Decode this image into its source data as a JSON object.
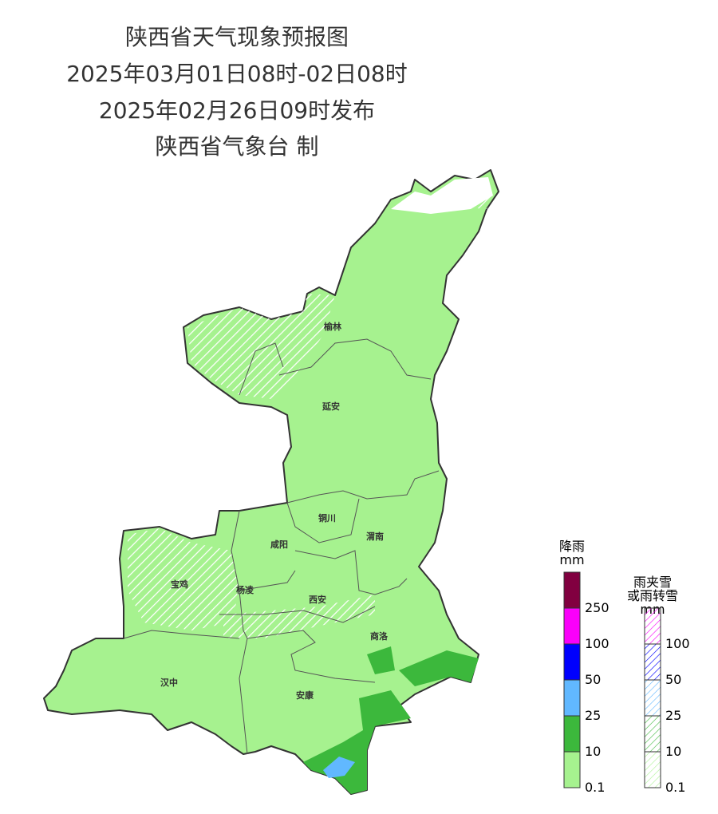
{
  "header": {
    "lines": [
      "陕西省天气现象预报图",
      "2025年03月01日08时-02日08时",
      "2025年02月26日09时发布",
      "陕西省气象台 制"
    ]
  },
  "cities": [
    {
      "label": "榆林"
    },
    {
      "label": "延安"
    },
    {
      "label": "铜川"
    },
    {
      "label": "渭南"
    },
    {
      "label": "咸阳"
    },
    {
      "label": "宝鸡"
    },
    {
      "label": "杨凌"
    },
    {
      "label": "西安"
    },
    {
      "label": "商洛"
    },
    {
      "label": "汉中"
    },
    {
      "label": "安康"
    }
  ],
  "legend": {
    "rain": {
      "title": [
        "降雨",
        "mm"
      ],
      "colors": [
        "#a6f28f",
        "#3cb83c",
        "#61b8ff",
        "#0000fe",
        "#fa00fa",
        "#810040"
      ],
      "ticks": [
        0.1,
        10,
        25,
        50,
        100,
        250
      ]
    },
    "mixed": {
      "title": [
        "雨夹雪",
        "或雨转雪",
        "mm"
      ],
      "colors": [
        "#a6f28f",
        "#3cb83c",
        "#61b8ff",
        "#0000fe",
        "#fa00fa"
      ],
      "ticks": [
        0.1,
        10,
        25,
        50,
        100
      ]
    }
  }
}
